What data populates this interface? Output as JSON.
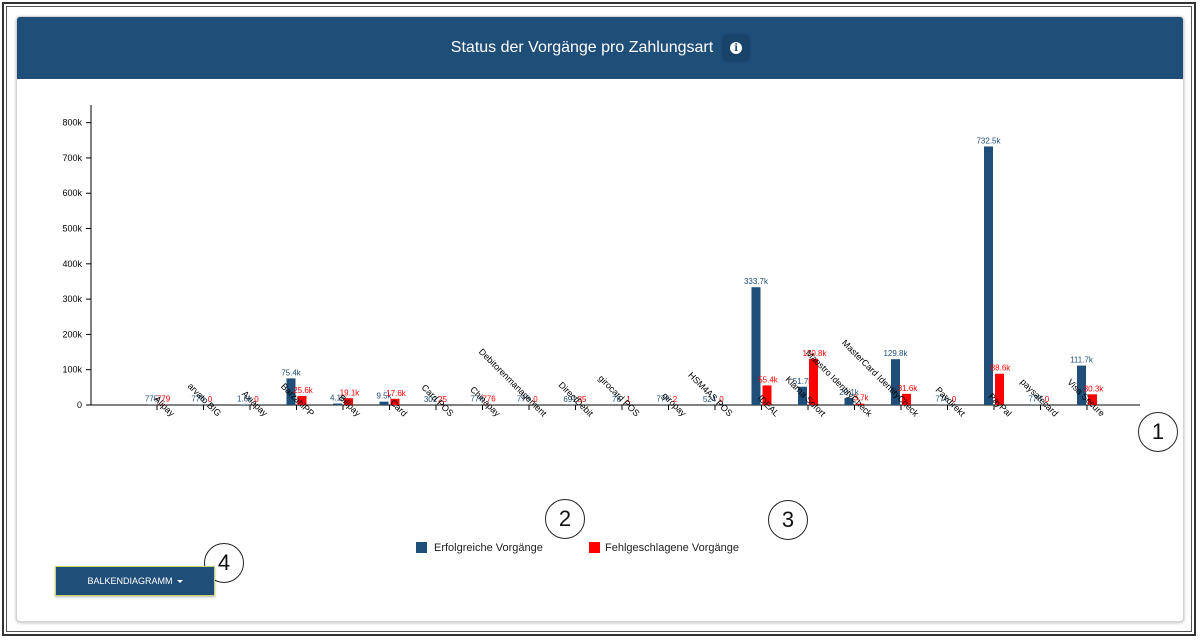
{
  "header": {
    "title": "Status der Vorgänge pro Zahlungsart",
    "info_icon": "info-circle-icon"
  },
  "colors": {
    "header_bg": "#1f4e79",
    "success": "#1f4e79",
    "failed": "#ff0000"
  },
  "chart_data": {
    "type": "bar",
    "title": "Status der Vorgänge pro Zahlungsart",
    "xlabel": "",
    "ylabel": "",
    "ylim": [
      0,
      850000
    ],
    "yticks": [
      0,
      100000,
      200000,
      300000,
      400000,
      500000,
      600000,
      700000,
      800000
    ],
    "ytick_labels": [
      "0",
      "100k",
      "200k",
      "300k",
      "400k",
      "500k",
      "600k",
      "700k",
      "800k"
    ],
    "categories": [
      "Alipay",
      "arvato BIG",
      "Axiapay",
      "BarzahlPP",
      "Billpay",
      "Card",
      "Card POS",
      "Chinapay",
      "Debitorenmanagement",
      "DirectDebit",
      "girocard POS",
      "giropay",
      "HSM4AS POS",
      "IDEAL",
      "Klarna Sofort",
      "Maestro IdentityCheck",
      "MasterCard IdentityCheck",
      "Paydirekt",
      "PayPal",
      "paysafecard",
      "Visa Secure"
    ],
    "series": [
      {
        "name": "Erfolgreiche Vorgänge",
        "values": [
          775,
          776,
          1600,
          75400,
          4100,
          9500,
          301,
          776,
          776,
          691,
          76,
          776,
          524,
          333700,
          51700,
          20100,
          129800,
          776,
          732500,
          776,
          111700
        ],
        "labels": [
          "775",
          "776",
          "1.6k",
          "75.4k",
          "4.1k",
          "9.5k",
          "301",
          "776",
          "776",
          "691",
          "76",
          "776",
          "524",
          "333.7k",
          "51.7k",
          "20.1k",
          "129.8k",
          "776",
          "732.5k",
          "776",
          "111.7k"
        ]
      },
      {
        "name": "Fehlgeschlagene Vorgänge",
        "values": [
          779,
          0,
          0,
          25600,
          19100,
          17600,
          25,
          776,
          0,
          85,
          1,
          2,
          0,
          55400,
          130800,
          3700,
          31600,
          0,
          88600,
          0,
          30300
        ],
        "labels": [
          "779",
          "0",
          "0",
          "25.6k",
          "19.1k",
          "17.6k",
          "25",
          "776",
          "0",
          "85",
          "1",
          "2",
          "0",
          "55.4k",
          "130.8k",
          "3.7k",
          "31.6k",
          "0",
          "88.6k",
          "0",
          "30.3k"
        ]
      }
    ],
    "legend_position": "bottom-center"
  },
  "controls": {
    "chart_type_label": "BALKENDIAGRAMM"
  },
  "callouts": [
    "1",
    "2",
    "3",
    "4"
  ]
}
